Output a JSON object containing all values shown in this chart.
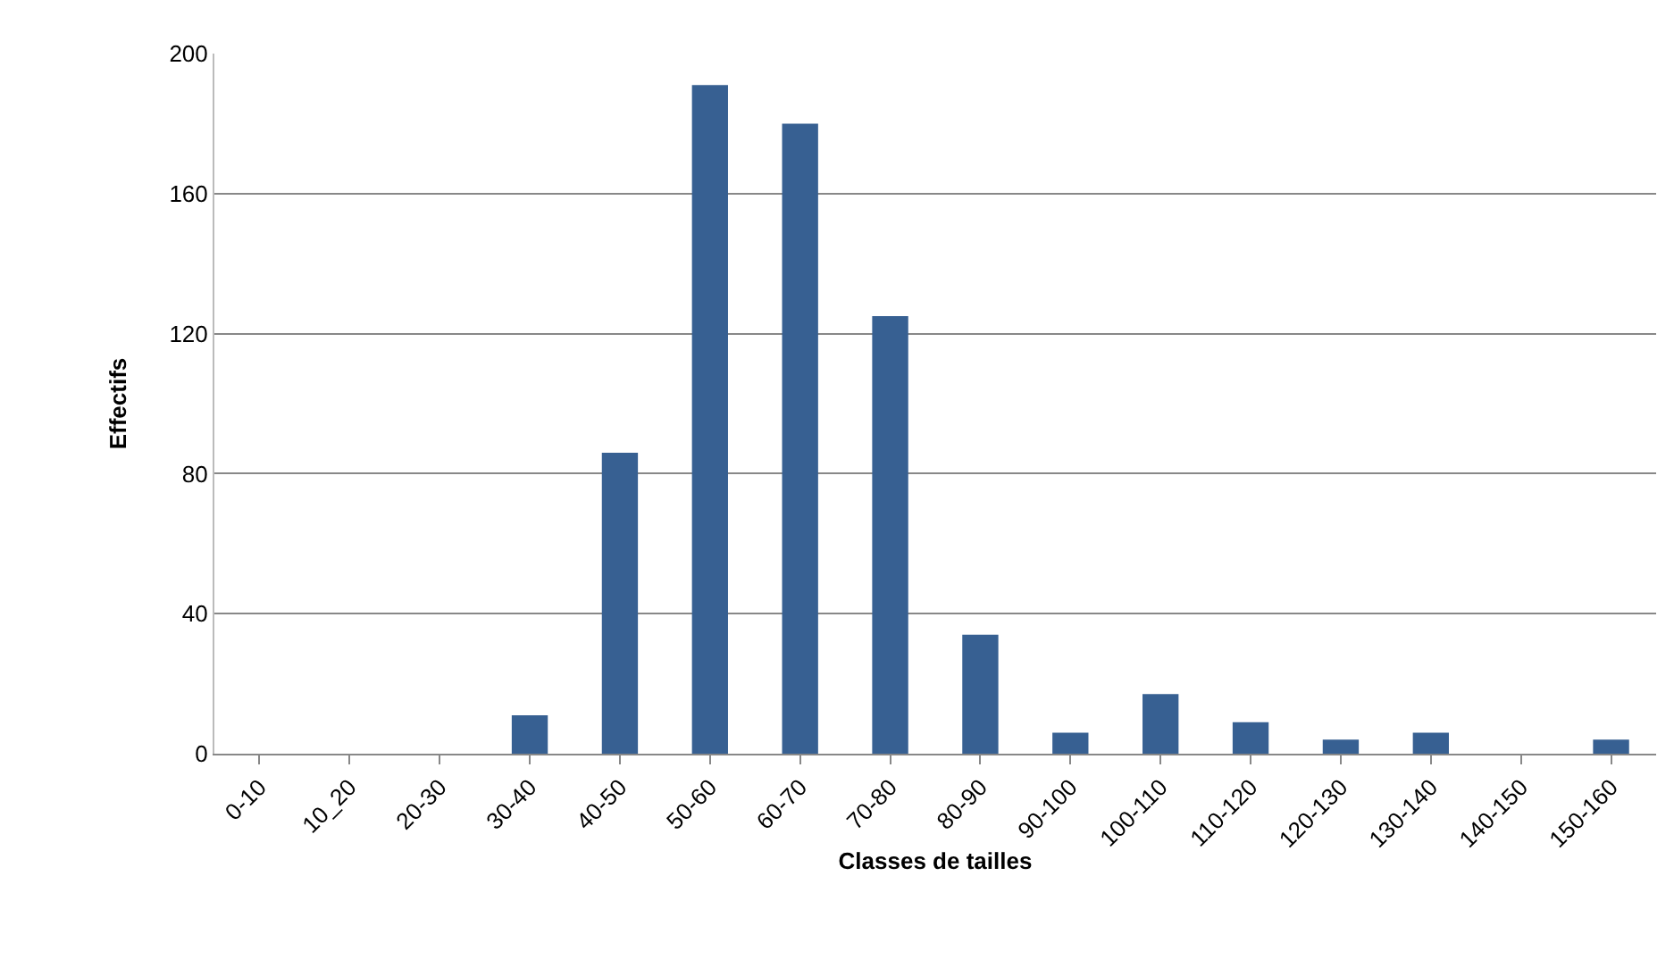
{
  "chart_data": {
    "type": "bar",
    "xlabel": "Classes de tailles",
    "ylabel": "Effectifs",
    "categories": [
      "0-10",
      "10_20",
      "20-30",
      "30-40",
      "40-50",
      "50-60",
      "60-70",
      "70-80",
      "80-90",
      "90-100",
      "100-110",
      "110-120",
      "120-130",
      "130-140",
      "140-150",
      "150-160"
    ],
    "values": [
      0,
      0,
      0,
      11,
      86,
      191,
      180,
      125,
      34,
      6,
      17,
      9,
      4,
      6,
      0,
      4
    ],
    "color": "#376092",
    "ylim": [
      0,
      200
    ],
    "yticks": [
      0,
      40,
      80,
      120,
      160,
      200
    ],
    "grid": "y",
    "legend": false
  }
}
